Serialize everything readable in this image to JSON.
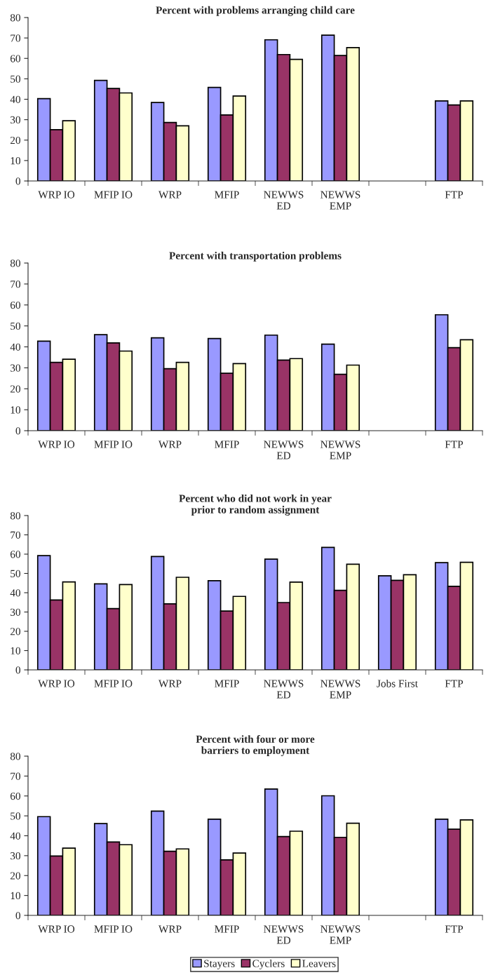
{
  "chart_data": [
    {
      "type": "bar",
      "title": "Percent with problems arranging child care",
      "categories": [
        "WRP IO",
        "MFIP IO",
        "WRP",
        "MFIP",
        "NEWWS\nED",
        "NEWWS\nEMP",
        null,
        "FTP"
      ],
      "ylim": [
        0,
        80
      ],
      "yticks": [
        0,
        10,
        20,
        30,
        40,
        50,
        60,
        70,
        80
      ],
      "grid": false,
      "legend": false,
      "series": [
        {
          "color": "#9999ff",
          "values": [
            40.3,
            49.2,
            38.4,
            45.8,
            69.1,
            71.4,
            null,
            39.2
          ]
        },
        {
          "color": "#993366",
          "values": [
            25.1,
            45.3,
            28.6,
            32.3,
            61.9,
            61.4,
            null,
            37.2
          ]
        },
        {
          "color": "#ffffcc",
          "values": [
            29.5,
            43.1,
            27.0,
            41.6,
            59.5,
            65.3,
            null,
            39.2
          ]
        }
      ]
    },
    {
      "type": "bar",
      "title": "Percent with transportation problems",
      "categories": [
        "WRP IO",
        "MFIP IO",
        "WRP",
        "MFIP",
        "NEWWS\nED",
        "NEWWS\nEMP",
        null,
        "FTP"
      ],
      "ylim": [
        0,
        80
      ],
      "yticks": [
        0,
        10,
        20,
        30,
        40,
        50,
        60,
        70,
        80
      ],
      "grid": false,
      "legend": false,
      "series": [
        {
          "color": "#9999ff",
          "values": [
            42.7,
            45.8,
            44.3,
            44.0,
            45.6,
            41.3,
            null,
            55.3
          ]
        },
        {
          "color": "#993366",
          "values": [
            32.6,
            41.9,
            29.6,
            27.4,
            33.7,
            26.9,
            null,
            39.6
          ]
        },
        {
          "color": "#ffffcc",
          "values": [
            34.1,
            38.0,
            32.6,
            32.0,
            34.4,
            31.3,
            null,
            43.4
          ]
        }
      ]
    },
    {
      "type": "bar",
      "title": "Percent who did not work in year\nprior to random assignment",
      "categories": [
        "WRP IO",
        "MFIP IO",
        "WRP",
        "MFIP",
        "NEWWS\nED",
        "NEWWS\nEMP",
        "Jobs First",
        "FTP"
      ],
      "ylim": [
        0,
        80
      ],
      "yticks": [
        0,
        10,
        20,
        30,
        40,
        50,
        60,
        70,
        80
      ],
      "grid": false,
      "legend": false,
      "series": [
        {
          "color": "#9999ff",
          "values": [
            59.2,
            44.6,
            58.8,
            46.2,
            57.4,
            63.5,
            48.8,
            55.6
          ]
        },
        {
          "color": "#993366",
          "values": [
            36.2,
            31.8,
            34.2,
            30.5,
            34.9,
            41.2,
            46.4,
            43.3
          ]
        },
        {
          "color": "#ffffcc",
          "values": [
            45.6,
            44.2,
            48.0,
            38.1,
            45.5,
            54.8,
            49.3,
            55.8
          ]
        }
      ]
    },
    {
      "type": "bar",
      "title": "Percent with four or more\nbarriers to employment",
      "categories": [
        "WRP IO",
        "MFIP IO",
        "WRP",
        "MFIP",
        "NEWWS\nED",
        "NEWWS\nEMP",
        null,
        "FTP"
      ],
      "ylim": [
        0,
        80
      ],
      "yticks": [
        0,
        10,
        20,
        30,
        40,
        50,
        60,
        70,
        80
      ],
      "grid": false,
      "legend": "bottom",
      "series": [
        {
          "name": "Stayers",
          "color": "#9999ff",
          "values": [
            49.6,
            46.1,
            52.4,
            48.3,
            63.5,
            60.1,
            null,
            48.3
          ]
        },
        {
          "name": "Cyclers",
          "color": "#993366",
          "values": [
            29.8,
            36.9,
            32.2,
            27.9,
            39.6,
            39.2,
            null,
            43.3
          ]
        },
        {
          "name": "Leavers",
          "color": "#ffffcc",
          "values": [
            33.8,
            35.5,
            33.4,
            31.3,
            42.3,
            46.3,
            null,
            48.0
          ]
        }
      ]
    }
  ]
}
